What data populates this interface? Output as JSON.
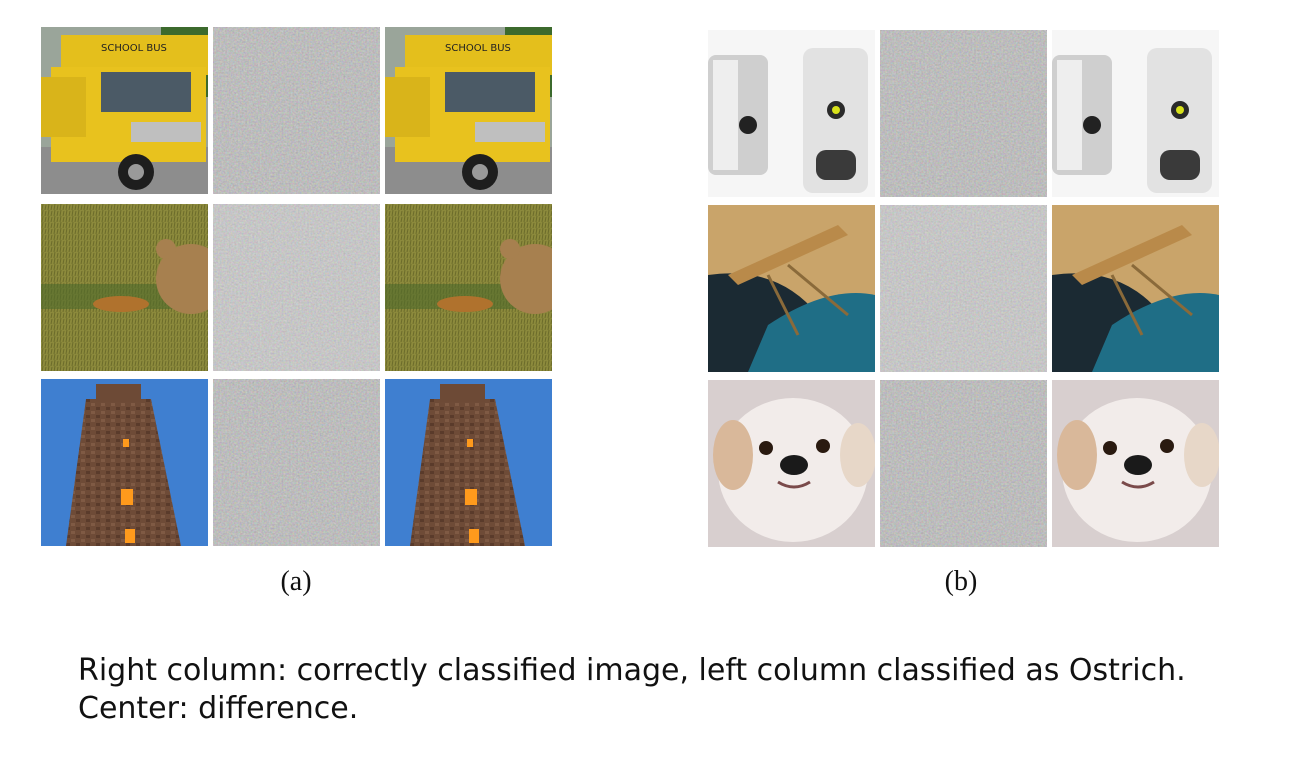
{
  "panels": [
    {
      "label": "(a)",
      "rows": [
        {
          "subject": "school-bus",
          "bus_sign": "SCHOOL BUS"
        },
        {
          "subject": "bird-in-grass"
        },
        {
          "subject": "temple-tower"
        }
      ]
    },
    {
      "label": "(b)",
      "rows": [
        {
          "subject": "soap-dispensers"
        },
        {
          "subject": "praying-mantis"
        },
        {
          "subject": "white-dog"
        }
      ]
    }
  ],
  "caption": {
    "line1": "Right column: correctly classified image, left column classified as Ostrich.",
    "line2": "Center: difference."
  },
  "colors": {
    "noise_base": "#808080",
    "bus_yellow": "#e8c21e",
    "grass": "#8a8a3a",
    "sky": "#3f7fd0",
    "temple": "#6d4a36"
  }
}
